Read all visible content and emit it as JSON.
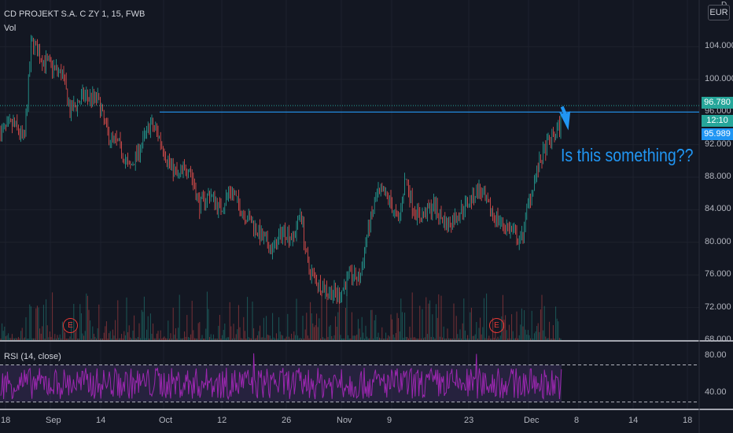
{
  "header": {
    "symbol_line": "CD PROJEKT S.A. C ZY 1, 15, FWB",
    "volume_label": "Vol"
  },
  "currency": "EUR",
  "currency_top_fragment": "D",
  "annotation_text": "Is this something??",
  "rsi_label": "RSI (14, close)",
  "earnings_marker": "E",
  "price_tags": {
    "last": "96.780",
    "countdown": "12:10",
    "level": "95.989"
  },
  "colors": {
    "background": "#131722",
    "up": "#26a69a",
    "down": "#ef5350",
    "rsi_line": "#9c27b0",
    "rsi_band": "#7e57c2",
    "annotation": "#2196f3",
    "level_line": "#2196f3"
  },
  "chart_data": {
    "type": "candlestick",
    "price_axis_ticks": [
      "104.000",
      "100.000",
      "96.000",
      "92.000",
      "88.000",
      "84.000",
      "80.000",
      "76.000",
      "72.000",
      "68.000"
    ],
    "price_axis_values": [
      104,
      100,
      96,
      92,
      88,
      84,
      80,
      76,
      72,
      68
    ],
    "price_range": [
      68,
      108
    ],
    "rsi_ticks": [
      "80.00",
      "40.00"
    ],
    "rsi_values": [
      80,
      40
    ],
    "rsi_range": [
      22,
      90
    ],
    "rsi_band": [
      30,
      70
    ],
    "x_ticks": [
      "18",
      "Sep",
      "14",
      "Oct",
      "12",
      "26",
      "Nov",
      "9",
      "23",
      "Dec",
      "8",
      "14",
      "18"
    ],
    "horizontal_level": 95.989,
    "last_price": 96.78,
    "price_path": [
      {
        "x": 0,
        "p": 93.5
      },
      {
        "x": 0.02,
        "p": 94.5
      },
      {
        "x": 0.035,
        "p": 92.5
      },
      {
        "x": 0.045,
        "p": 104.8
      },
      {
        "x": 0.06,
        "p": 102.5
      },
      {
        "x": 0.075,
        "p": 101.5
      },
      {
        "x": 0.09,
        "p": 100.5
      },
      {
        "x": 0.1,
        "p": 96.0
      },
      {
        "x": 0.12,
        "p": 98.0
      },
      {
        "x": 0.14,
        "p": 97.5
      },
      {
        "x": 0.155,
        "p": 93.0
      },
      {
        "x": 0.17,
        "p": 92.0
      },
      {
        "x": 0.185,
        "p": 89.0
      },
      {
        "x": 0.2,
        "p": 91.5
      },
      {
        "x": 0.215,
        "p": 94.5
      },
      {
        "x": 0.225,
        "p": 93.5
      },
      {
        "x": 0.24,
        "p": 90.0
      },
      {
        "x": 0.255,
        "p": 88.0
      },
      {
        "x": 0.27,
        "p": 89.5
      },
      {
        "x": 0.285,
        "p": 84.5
      },
      {
        "x": 0.3,
        "p": 86.0
      },
      {
        "x": 0.315,
        "p": 84.0
      },
      {
        "x": 0.33,
        "p": 86.5
      },
      {
        "x": 0.345,
        "p": 84.0
      },
      {
        "x": 0.36,
        "p": 82.5
      },
      {
        "x": 0.375,
        "p": 80.5
      },
      {
        "x": 0.39,
        "p": 79.0
      },
      {
        "x": 0.405,
        "p": 81.5
      },
      {
        "x": 0.42,
        "p": 80.5
      },
      {
        "x": 0.43,
        "p": 84.0
      },
      {
        "x": 0.44,
        "p": 77.0
      },
      {
        "x": 0.455,
        "p": 75.0
      },
      {
        "x": 0.47,
        "p": 74.0
      },
      {
        "x": 0.485,
        "p": 73.5
      },
      {
        "x": 0.5,
        "p": 76.0
      },
      {
        "x": 0.515,
        "p": 75.5
      },
      {
        "x": 0.525,
        "p": 81.0
      },
      {
        "x": 0.54,
        "p": 86.0
      },
      {
        "x": 0.555,
        "p": 85.5
      },
      {
        "x": 0.57,
        "p": 82.5
      },
      {
        "x": 0.58,
        "p": 88.0
      },
      {
        "x": 0.59,
        "p": 84.5
      },
      {
        "x": 0.6,
        "p": 83.0
      },
      {
        "x": 0.62,
        "p": 84.5
      },
      {
        "x": 0.64,
        "p": 82.0
      },
      {
        "x": 0.655,
        "p": 83.5
      },
      {
        "x": 0.67,
        "p": 85.0
      },
      {
        "x": 0.685,
        "p": 86.5
      },
      {
        "x": 0.7,
        "p": 84.0
      },
      {
        "x": 0.715,
        "p": 82.5
      },
      {
        "x": 0.73,
        "p": 81.5
      },
      {
        "x": 0.745,
        "p": 80.0
      },
      {
        "x": 0.755,
        "p": 84.5
      },
      {
        "x": 0.765,
        "p": 88.0
      },
      {
        "x": 0.78,
        "p": 91.5
      },
      {
        "x": 0.795,
        "p": 93.5
      },
      {
        "x": 0.81,
        "p": 95.5
      },
      {
        "x": 0.825,
        "p": 96.8
      }
    ]
  }
}
